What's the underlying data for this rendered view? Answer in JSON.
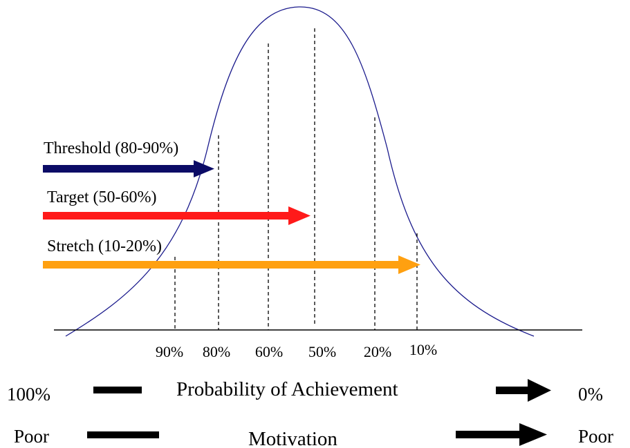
{
  "colors": {
    "curve": "#1a1a8c",
    "threshold_arrow": "#0b0b66",
    "target_arrow": "#ff1a1a",
    "stretch_arrow": "#ffa010",
    "ink": "#000000"
  },
  "arrows": {
    "threshold": {
      "label": "Threshold (80-90%)"
    },
    "target": {
      "label": "Target (50-60%)"
    },
    "stretch": {
      "label": "Stretch (10-20%)"
    }
  },
  "ticks": [
    "90%",
    "80%",
    "60%",
    "50%",
    "20%",
    "10%"
  ],
  "scales": {
    "probability": {
      "left": "100%",
      "title": "Probability of Achievement",
      "right": "0%"
    },
    "motivation": {
      "left": "Poor",
      "title": "Motivation",
      "right": "Poor"
    }
  }
}
